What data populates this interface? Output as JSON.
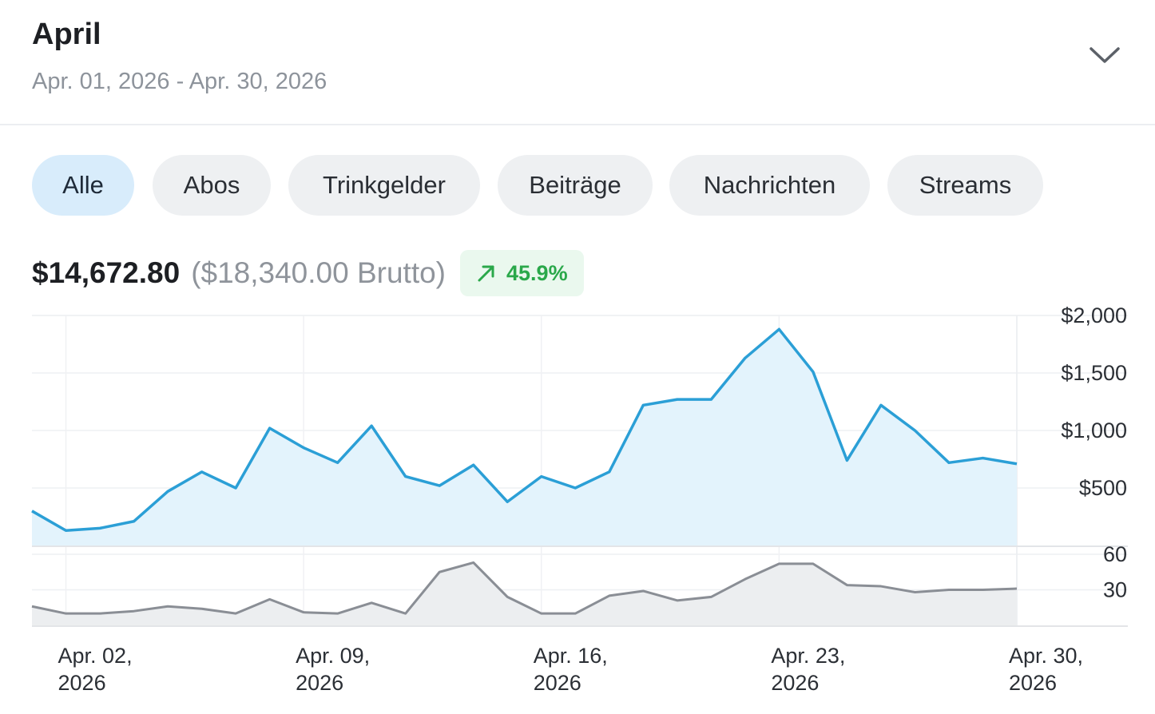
{
  "header": {
    "title": "April",
    "date_range": "Apr. 01, 2026 - Apr. 30, 2026",
    "toggle_icon": "chevron-down-icon"
  },
  "filters": {
    "items": [
      {
        "label": "Alle",
        "active": true
      },
      {
        "label": "Abos",
        "active": false
      },
      {
        "label": "Trinkgelder",
        "active": false
      },
      {
        "label": "Beiträge",
        "active": false
      },
      {
        "label": "Nachrichten",
        "active": false
      },
      {
        "label": "Streams",
        "active": false
      }
    ]
  },
  "summary": {
    "net": "$14,672.80",
    "gross": "($18,340.00 Brutto)",
    "change": "45.9%",
    "change_icon": "arrow-up-right-icon",
    "change_color": "#2aa84a"
  },
  "colors": {
    "accent": "#2b9fd6",
    "accent_fill": "#e3f3fc",
    "secondary": "#8a8e95",
    "secondary_fill": "#eceef0"
  },
  "chart_data": {
    "type": "line",
    "x": [
      "Apr. 01, 2026",
      "Apr. 02, 2026",
      "Apr. 03, 2026",
      "Apr. 04, 2026",
      "Apr. 05, 2026",
      "Apr. 06, 2026",
      "Apr. 07, 2026",
      "Apr. 08, 2026",
      "Apr. 09, 2026",
      "Apr. 10, 2026",
      "Apr. 11, 2026",
      "Apr. 12, 2026",
      "Apr. 13, 2026",
      "Apr. 14, 2026",
      "Apr. 15, 2026",
      "Apr. 16, 2026",
      "Apr. 17, 2026",
      "Apr. 18, 2026",
      "Apr. 19, 2026",
      "Apr. 20, 2026",
      "Apr. 21, 2026",
      "Apr. 22, 2026",
      "Apr. 23, 2026",
      "Apr. 24, 2026",
      "Apr. 25, 2026",
      "Apr. 26, 2026",
      "Apr. 27, 2026",
      "Apr. 28, 2026",
      "Apr. 29, 2026",
      "Apr. 30, 2026"
    ],
    "x_ticks": [
      {
        "line1": "Apr. 02,",
        "line2": "2026",
        "index": 1
      },
      {
        "line1": "Apr. 09,",
        "line2": "2026",
        "index": 8
      },
      {
        "line1": "Apr. 16,",
        "line2": "2026",
        "index": 15
      },
      {
        "line1": "Apr. 23,",
        "line2": "2026",
        "index": 22
      },
      {
        "line1": "Apr. 30,",
        "line2": "2026",
        "index": 29
      }
    ],
    "series": [
      {
        "values": [
          300,
          130,
          150,
          210,
          470,
          640,
          500,
          1020,
          850,
          720,
          1040,
          600,
          520,
          700,
          380,
          600,
          500,
          640,
          1220,
          1270,
          1270,
          1630,
          1880,
          1510,
          740,
          1220,
          1000,
          720,
          760,
          710
        ]
      },
      {
        "values": [
          16,
          10,
          10,
          12,
          16,
          14,
          10,
          22,
          11,
          10,
          19,
          10,
          45,
          53,
          24,
          10,
          10,
          25,
          29,
          21,
          24,
          39,
          52,
          52,
          34,
          33,
          28,
          30,
          30,
          31
        ]
      }
    ],
    "y_ticks_main": [
      "$500",
      "$1,000",
      "$1,500",
      "$2,000"
    ],
    "y_ticks_main_values": [
      500,
      1000,
      1500,
      2000
    ],
    "y_ticks_secondary": [
      "30",
      "60"
    ],
    "y_ticks_secondary_values": [
      30,
      60
    ],
    "ylim_main": [
      0,
      2000
    ],
    "ylim_secondary": [
      0,
      60
    ],
    "grid": true
  }
}
